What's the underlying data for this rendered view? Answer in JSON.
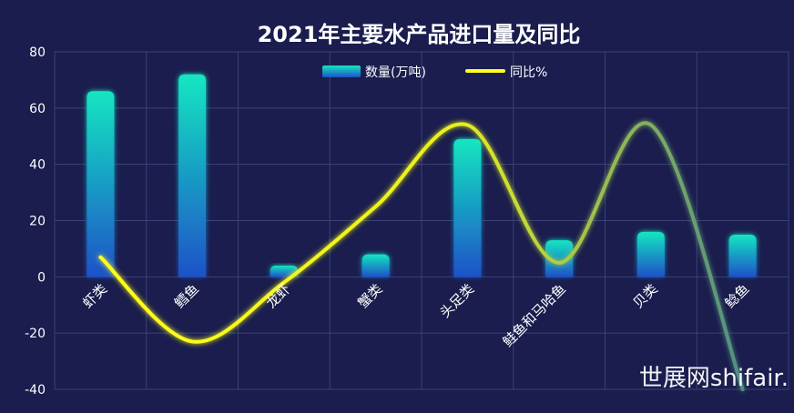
{
  "chart_data": {
    "type": "bar",
    "title": "2021年主要水产品进口量及同比",
    "categories": [
      "虾类",
      "鳕鱼",
      "龙虾",
      "蟹类",
      "头足类",
      "鲑鱼和马哈鱼",
      "贝类",
      "鲶鱼"
    ],
    "series": [
      {
        "name": "数量(万吨)",
        "type": "bar",
        "values": [
          66,
          72,
          4,
          8,
          49,
          13,
          16,
          15
        ]
      },
      {
        "name": "同比%",
        "type": "line",
        "smooth": true,
        "values": [
          7,
          -23,
          -2,
          25,
          54,
          5,
          54,
          -40
        ]
      }
    ],
    "yticks": [
      80,
      60,
      40,
      20,
      0,
      -20,
      -40
    ],
    "ylim": [
      -40,
      80
    ],
    "grid": true,
    "legend_position": "top-center",
    "colors": {
      "background": "#1a1d4d",
      "bar_top": "#12e6c1",
      "bar_bottom": "#1f52c8",
      "line_start": "#ffff1a",
      "line_end": "#4f8f84",
      "grid": "#3b4276"
    }
  },
  "watermark": "世展网shifair."
}
